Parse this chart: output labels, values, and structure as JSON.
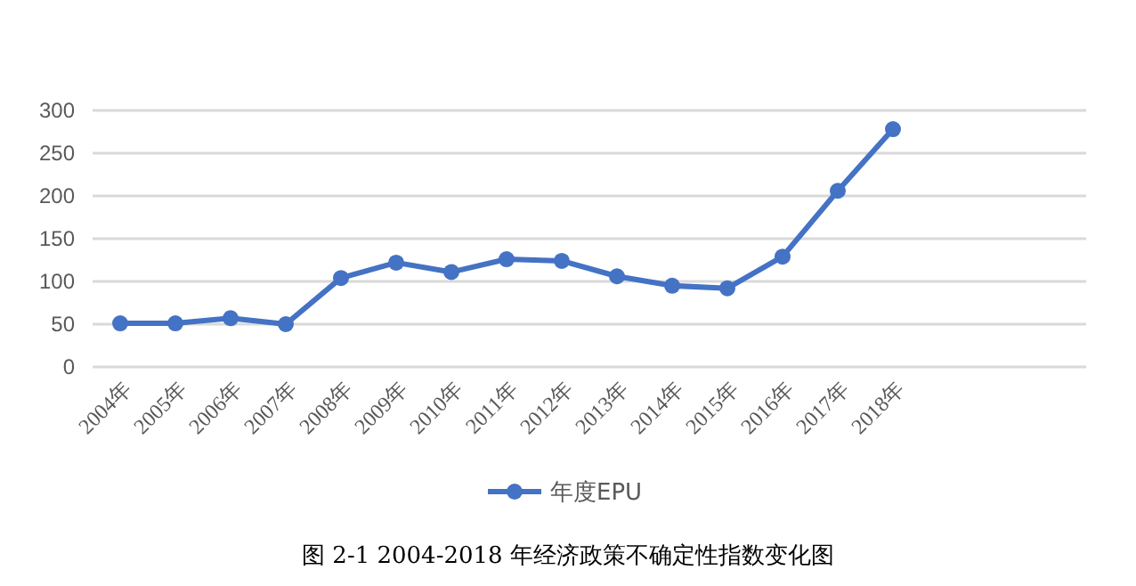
{
  "chart_data": {
    "type": "line",
    "categories": [
      "2004年",
      "2005年",
      "2006年",
      "2007年",
      "2008年",
      "2009年",
      "2010年",
      "2011年",
      "2012年",
      "2013年",
      "2014年",
      "2015年",
      "2016年",
      "2017年",
      "2018年",
      null,
      null,
      null
    ],
    "series": [
      {
        "name": "年度EPU",
        "color": "#4472c4",
        "values": [
          51,
          51,
          57,
          50,
          104,
          122,
          111,
          126,
          124,
          106,
          95,
          92,
          129,
          206,
          278,
          null,
          null,
          null
        ]
      }
    ],
    "ylim": [
      0,
      300
    ],
    "yticks": [
      0,
      50,
      100,
      150,
      200,
      250,
      300
    ],
    "grid": "y",
    "legend": "bottom",
    "marker": "circle",
    "line_style": "solid",
    "annotations": [
      "图 2-1 2004-2018 年经济政策不确定性指数变化图"
    ]
  }
}
